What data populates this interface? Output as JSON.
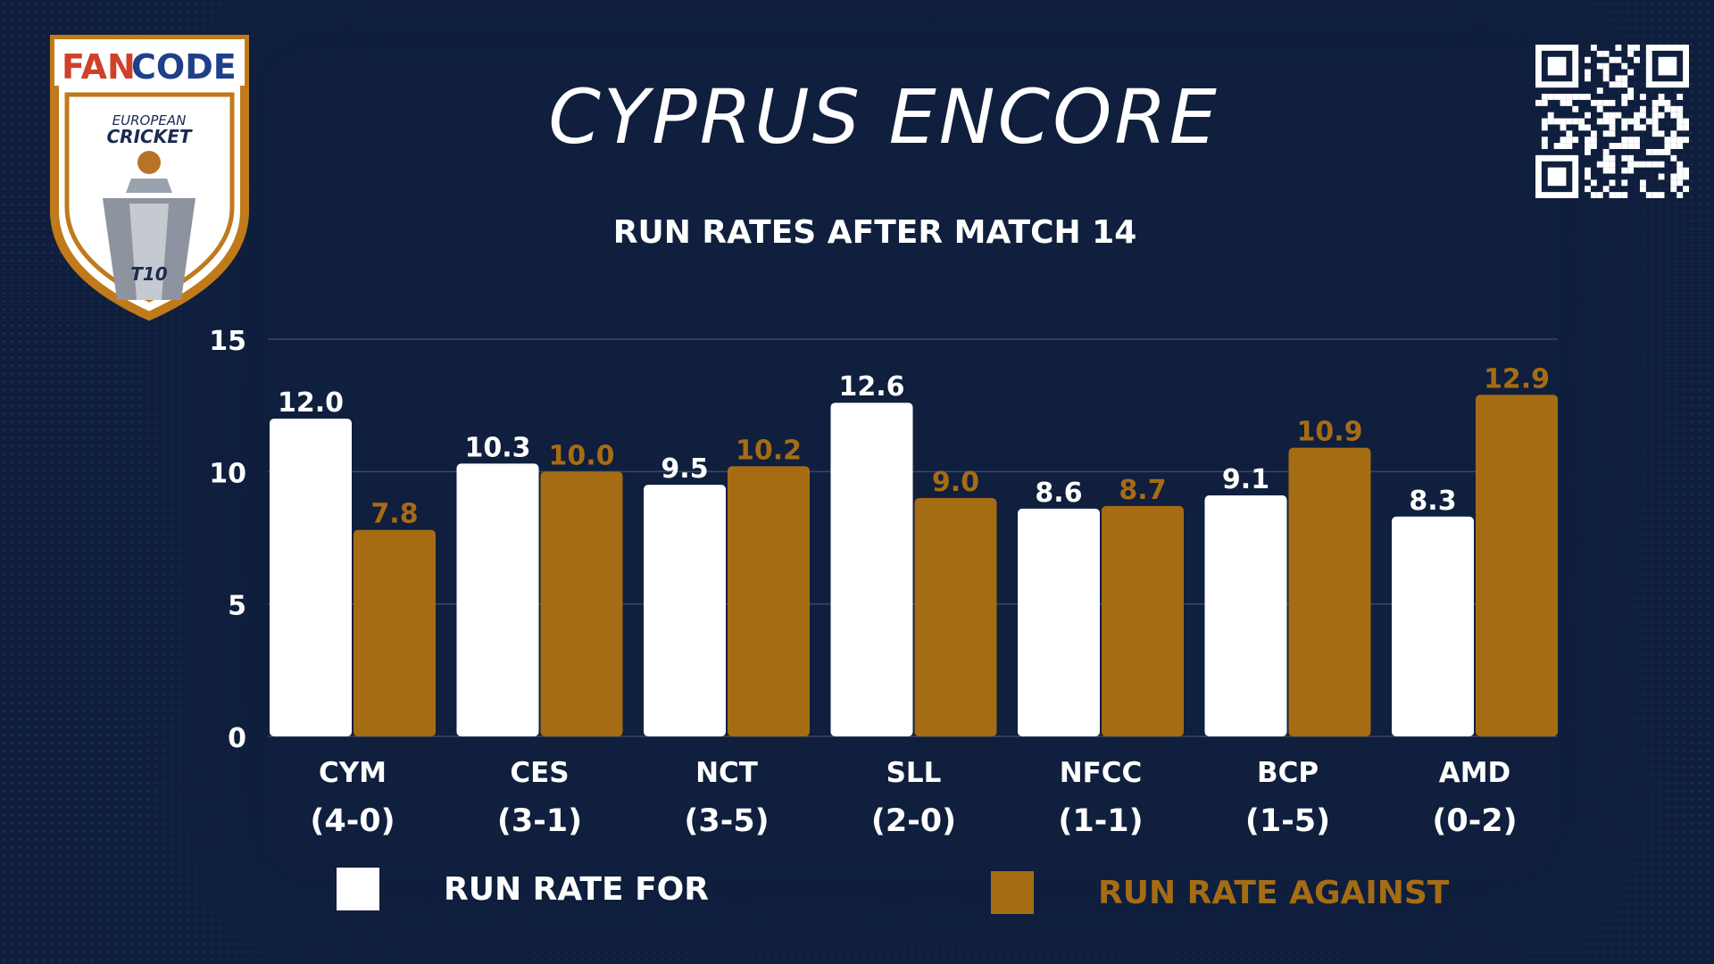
{
  "logo": {
    "brand": "FANCODE",
    "line1": "EUROPEAN",
    "line2": "CRICKET",
    "badge": "T10"
  },
  "title": "CYPRUS ENCORE",
  "subtitle": "RUN RATES AFTER MATCH 14",
  "colors": {
    "background": "#0f1f3d",
    "for": "#ffffff",
    "against": "#a66c14"
  },
  "chart_data": {
    "type": "bar",
    "title": "RUN RATES AFTER MATCH 14",
    "categories": [
      "CYM",
      "CES",
      "NCT",
      "SLL",
      "NFCC",
      "BCP",
      "AMD"
    ],
    "records": [
      "(4-0)",
      "(3-1)",
      "(3-5)",
      "(2-0)",
      "(1-1)",
      "(1-5)",
      "(0-2)"
    ],
    "series": [
      {
        "name": "RUN RATE FOR",
        "values": [
          12.0,
          10.3,
          9.5,
          12.6,
          8.6,
          9.1,
          8.3
        ],
        "color": "#ffffff"
      },
      {
        "name": "RUN RATE AGAINST",
        "values": [
          7.8,
          10.0,
          10.2,
          9.0,
          8.7,
          10.9,
          12.9
        ],
        "color": "#a66c14"
      }
    ],
    "ylim": [
      0,
      15
    ],
    "yticks": [
      0,
      5,
      10,
      15
    ],
    "grid": true,
    "legend": "bottom"
  }
}
